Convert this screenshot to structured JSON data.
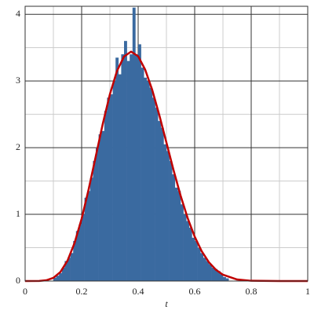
{
  "chart_data": {
    "type": "histogram",
    "x_label": "t",
    "bins": [
      0.1,
      0.11,
      0.12,
      0.13,
      0.14,
      0.15,
      0.16,
      0.17,
      0.18,
      0.19,
      0.2,
      0.21,
      0.22,
      0.23,
      0.24,
      0.25,
      0.26,
      0.27,
      0.28,
      0.29,
      0.3,
      0.31,
      0.32,
      0.33,
      0.34,
      0.35,
      0.36,
      0.37,
      0.38,
      0.39,
      0.4,
      0.41,
      0.42,
      0.43,
      0.44,
      0.45,
      0.46,
      0.47,
      0.48,
      0.49,
      0.5,
      0.51,
      0.52,
      0.53,
      0.54,
      0.55,
      0.56,
      0.57,
      0.58,
      0.59,
      0.6,
      0.61,
      0.62,
      0.63,
      0.64,
      0.65,
      0.66,
      0.67,
      0.68,
      0.69,
      0.7,
      0.71,
      0.72
    ],
    "counts": [
      0.05,
      0.08,
      0.12,
      0.2,
      0.3,
      0.35,
      0.42,
      0.6,
      0.75,
      0.85,
      1.0,
      1.25,
      1.35,
      1.55,
      1.8,
      2.0,
      2.2,
      2.25,
      2.55,
      2.75,
      2.8,
      3.0,
      3.35,
      3.1,
      3.4,
      3.6,
      3.3,
      3.4,
      4.1,
      3.4,
      3.55,
      3.2,
      3.05,
      3.0,
      2.9,
      2.75,
      2.6,
      2.4,
      2.3,
      2.05,
      1.95,
      1.8,
      1.6,
      1.4,
      1.35,
      1.15,
      1.0,
      0.9,
      0.8,
      0.65,
      0.6,
      0.5,
      0.42,
      0.35,
      0.3,
      0.25,
      0.2,
      0.18,
      0.15,
      0.1,
      0.06,
      0.04
    ],
    "color": "#3a6aa0",
    "curve": {
      "color": "#c00000",
      "x": [
        0,
        0.05,
        0.075,
        0.1,
        0.125,
        0.15,
        0.175,
        0.2,
        0.225,
        0.25,
        0.275,
        0.3,
        0.325,
        0.35,
        0.375,
        0.4,
        0.425,
        0.45,
        0.475,
        0.5,
        0.525,
        0.55,
        0.575,
        0.6,
        0.625,
        0.65,
        0.675,
        0.7,
        0.75,
        0.8,
        0.9,
        1
      ],
      "y": [
        0,
        0.0013,
        0.0111,
        0.0475,
        0.1366,
        0.305,
        0.571,
        0.935,
        1.38,
        1.87,
        2.361,
        2.801,
        3.149,
        3.367,
        3.44,
        3.371,
        3.168,
        2.863,
        2.485,
        2.077,
        1.666,
        1.283,
        0.946,
        0.666,
        0.446,
        0.283,
        0.169,
        0.0945,
        0.0231,
        0.0037,
        0,
        0
      ]
    },
    "xlim": [
      0,
      1
    ],
    "ylim": [
      0,
      4.12
    ],
    "xticks": [
      0,
      0.2,
      0.4,
      0.6,
      0.8,
      1
    ],
    "yticks": [
      0,
      1,
      2,
      3,
      4
    ],
    "x_minor_grid": [
      0.1,
      0.3,
      0.5,
      0.7,
      0.9
    ],
    "y_minor_grid": [
      0.5,
      1.5,
      2.5,
      3.5
    ],
    "grid": true
  }
}
